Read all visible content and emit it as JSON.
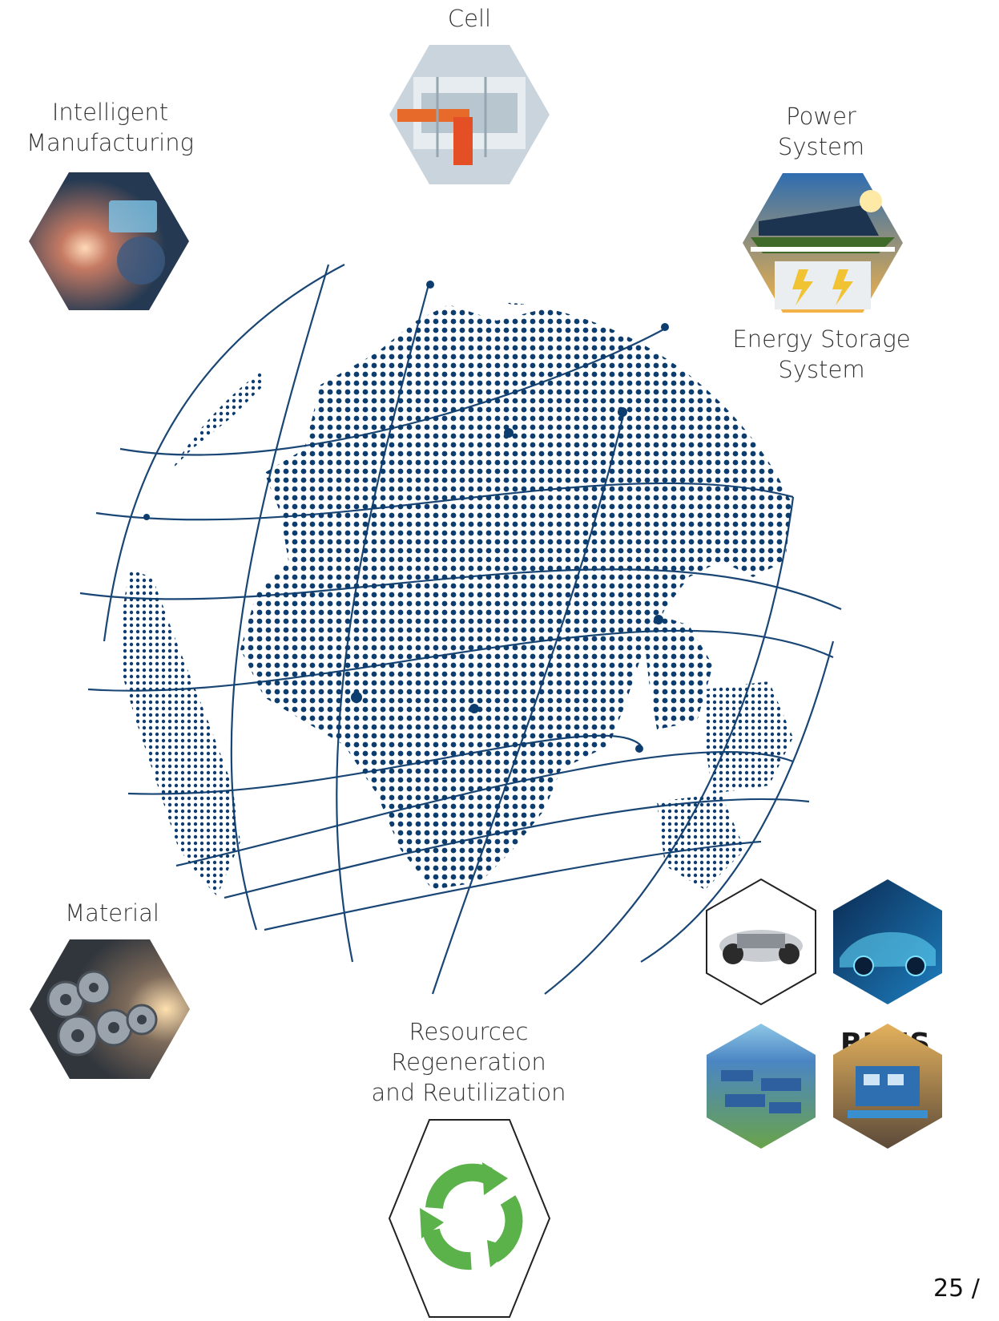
{
  "labels": {
    "cell": "Cell",
    "intelligent_manufacturing": [
      "Intelligent",
      "Manufacturing"
    ],
    "power_system": [
      "Power",
      "System"
    ],
    "energy_storage_system": [
      "Energy Storage",
      "System"
    ],
    "material": "Material",
    "resource_regeneration": [
      "Resourcec",
      "Regeneration",
      "and Reutilization"
    ],
    "blms": "BLMS"
  },
  "page_number": "25 /",
  "colors": {
    "globe_blue": "#0d3d6e",
    "recycle_green": "#5bb14a"
  }
}
